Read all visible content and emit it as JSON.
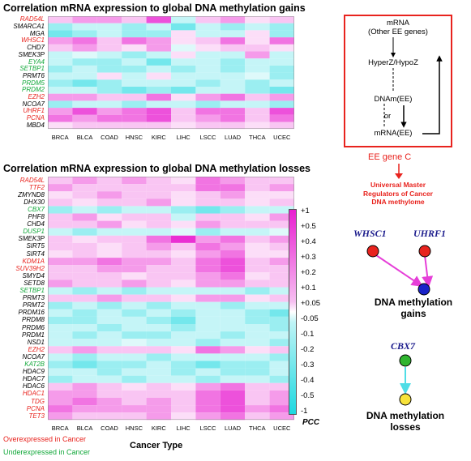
{
  "top_panel": {
    "title": "Correlation mRNA expression to global DNA methylation gains",
    "genes": [
      {
        "name": "RAD54L",
        "color": "red"
      },
      {
        "name": "SMARCA1",
        "color": "black"
      },
      {
        "name": "MGA",
        "color": "black"
      },
      {
        "name": "WHSC1",
        "color": "red"
      },
      {
        "name": "CHD7",
        "color": "black"
      },
      {
        "name": "SMEK3P",
        "color": "black"
      },
      {
        "name": "EYA4",
        "color": "green"
      },
      {
        "name": "SETBP1",
        "color": "green"
      },
      {
        "name": "PRMT6",
        "color": "black"
      },
      {
        "name": "PRDM5",
        "color": "green"
      },
      {
        "name": "PRDM2",
        "color": "green"
      },
      {
        "name": "EZH2",
        "color": "red"
      },
      {
        "name": "NCOA7",
        "color": "black"
      },
      {
        "name": "UHRF1",
        "color": "red"
      },
      {
        "name": "PCNA",
        "color": "red"
      },
      {
        "name": "MBD4",
        "color": "black"
      }
    ]
  },
  "bottom_panel": {
    "title": "Correlation mRNA expression to global DNA methylation losses",
    "genes": [
      {
        "name": "RAD54L",
        "color": "red"
      },
      {
        "name": "TTF2",
        "color": "red"
      },
      {
        "name": "ZMYND8",
        "color": "black"
      },
      {
        "name": "DHX30",
        "color": "black"
      },
      {
        "name": "CBX7",
        "color": "green"
      },
      {
        "name": "PHF8",
        "color": "black"
      },
      {
        "name": "CHD4",
        "color": "black"
      },
      {
        "name": "DUSP1",
        "color": "green"
      },
      {
        "name": "SMEK3P",
        "color": "black"
      },
      {
        "name": "SIRT5",
        "color": "black"
      },
      {
        "name": "SIRT4",
        "color": "black"
      },
      {
        "name": "KDM1A",
        "color": "red"
      },
      {
        "name": "SUV39H2",
        "color": "red"
      },
      {
        "name": "SMYD4",
        "color": "black"
      },
      {
        "name": "SETD8",
        "color": "black"
      },
      {
        "name": "SETBP1",
        "color": "green"
      },
      {
        "name": "PRMT3",
        "color": "black"
      },
      {
        "name": "PRMT2",
        "color": "black"
      },
      {
        "name": "PRDM16",
        "color": "black"
      },
      {
        "name": "PRDM8",
        "color": "black"
      },
      {
        "name": "PRDM6",
        "color": "black"
      },
      {
        "name": "PRDM1",
        "color": "black"
      },
      {
        "name": "NSD1",
        "color": "black"
      },
      {
        "name": "EZH2",
        "color": "red"
      },
      {
        "name": "NCOA7",
        "color": "black"
      },
      {
        "name": "KAT2B",
        "color": "green"
      },
      {
        "name": "HDAC9",
        "color": "black"
      },
      {
        "name": "HDAC7",
        "color": "black"
      },
      {
        "name": "HDAC6",
        "color": "black"
      },
      {
        "name": "HDAC1",
        "color": "red"
      },
      {
        "name": "TDG",
        "color": "red"
      },
      {
        "name": "PCNA",
        "color": "red"
      },
      {
        "name": "TET3",
        "color": "red"
      }
    ],
    "xlabel": "Cancer Type"
  },
  "cancer_types": [
    "BRCA",
    "BLCA",
    "COAD",
    "HNSC",
    "KIRC",
    "LIHC",
    "LSCC",
    "LUAD",
    "THCA",
    "UCEC"
  ],
  "legend": {
    "title": "PCC",
    "ticks": [
      "+1",
      "+0.5",
      "+0.4",
      "+0.3",
      "+0.2",
      "+0.1",
      "+0.05",
      "-0.05",
      "-0.1",
      "-0.2",
      "-0.3",
      "-0.4",
      "-0.5",
      "-1"
    ]
  },
  "notes": {
    "over": "Overexpressed in Cancer",
    "under": "Underexpressed in Cancer"
  },
  "flow": {
    "mrna": "mRNA",
    "other": "(Other EE genes)",
    "hyper": "HyperZ/HypoZ",
    "dnam": "DNAm(EE)",
    "or": "or",
    "mrna_ee": "mRNA(EE)",
    "gene_c": "EE gene C",
    "regulators": [
      "Universal Master",
      "Regulators of Cancer",
      "DNA methylome"
    ]
  },
  "network": {
    "whsc1": "WHSC1",
    "uhrf1": "UHRF1",
    "gains": [
      "DNA methylation",
      "gains"
    ],
    "cbx7": "CBX7",
    "losses": [
      "DNA methylation",
      "losses"
    ]
  },
  "colors": {
    "pos_max": "#e81ed0",
    "neg_max": "#1ed8e0",
    "red_text": "#e8231e",
    "green_text": "#12a83a",
    "navy": "#1b1b8c",
    "arrow_magenta": "#e63fd8",
    "arrow_cyan": "#4fdde6"
  },
  "chart_data": [
    {
      "type": "heatmap",
      "title": "Correlation mRNA expression to global DNA methylation gains",
      "x": [
        "BRCA",
        "BLCA",
        "COAD",
        "HNSC",
        "KIRC",
        "LIHC",
        "LSCC",
        "LUAD",
        "THCA",
        "UCEC"
      ],
      "y": [
        "RAD54L",
        "SMARCA1",
        "MGA",
        "WHSC1",
        "CHD7",
        "SMEK3P",
        "EYA4",
        "SETBP1",
        "PRMT6",
        "PRDM5",
        "PRDM2",
        "EZH2",
        "NCOA7",
        "UHRF1",
        "PCNA",
        "MBD4"
      ],
      "values": [
        [
          0.1,
          0.2,
          0.2,
          0.1,
          0.4,
          -0.1,
          0.1,
          0.2,
          0.05,
          0.1
        ],
        [
          -0.2,
          -0.1,
          -0.1,
          -0.2,
          -0.1,
          -0.3,
          -0.1,
          -0.2,
          -0.1,
          -0.2
        ],
        [
          -0.3,
          -0.2,
          -0.1,
          -0.2,
          -0.2,
          0.05,
          -0.1,
          -0.1,
          0.05,
          -0.2
        ],
        [
          0.2,
          0.3,
          0.1,
          0.3,
          0.2,
          0.05,
          0.1,
          0.3,
          0.05,
          0.3
        ],
        [
          0.1,
          0.2,
          0.1,
          0.05,
          0.2,
          -0.05,
          0.05,
          0.1,
          0.1,
          0.05
        ],
        [
          -0.1,
          -0.05,
          -0.1,
          -0.2,
          -0.1,
          0.05,
          -0.1,
          -0.1,
          0.2,
          -0.1
        ],
        [
          -0.1,
          -0.2,
          -0.2,
          -0.1,
          -0.3,
          -0.1,
          -0.1,
          -0.2,
          -0.1,
          -0.1
        ],
        [
          -0.2,
          -0.1,
          -0.2,
          -0.2,
          -0.1,
          -0.2,
          -0.1,
          -0.2,
          -0.1,
          -0.2
        ],
        [
          -0.1,
          -0.1,
          0.05,
          -0.1,
          0.05,
          -0.1,
          -0.1,
          -0.1,
          -0.05,
          -0.2
        ],
        [
          -0.2,
          -0.3,
          -0.2,
          -0.1,
          -0.1,
          -0.1,
          -0.2,
          -0.1,
          -0.2,
          -0.1
        ],
        [
          -0.1,
          -0.1,
          -0.2,
          -0.3,
          -0.2,
          -0.3,
          -0.1,
          -0.1,
          -0.2,
          -0.3
        ],
        [
          0.2,
          0.2,
          0.1,
          0.1,
          0.3,
          0.05,
          0.2,
          0.3,
          0.1,
          0.2
        ],
        [
          -0.2,
          -0.1,
          -0.1,
          -0.2,
          -0.1,
          -0.1,
          -0.2,
          -0.1,
          -0.1,
          -0.2
        ],
        [
          0.2,
          0.4,
          0.2,
          0.3,
          0.4,
          0.1,
          0.3,
          0.3,
          0.1,
          0.4
        ],
        [
          0.3,
          0.2,
          0.3,
          0.3,
          0.4,
          0.1,
          0.2,
          0.3,
          0.1,
          0.3
        ],
        [
          0.05,
          0.1,
          0.1,
          0.1,
          0.1,
          0.05,
          0.1,
          0.1,
          0.05,
          0.1
        ]
      ],
      "value_range": [
        -1,
        1
      ]
    },
    {
      "type": "heatmap",
      "title": "Correlation mRNA expression to global DNA methylation losses",
      "x": [
        "BRCA",
        "BLCA",
        "COAD",
        "HNSC",
        "KIRC",
        "LIHC",
        "LSCC",
        "LUAD",
        "THCA",
        "UCEC"
      ],
      "y": [
        "RAD54L",
        "TTF2",
        "ZMYND8",
        "DHX30",
        "CBX7",
        "PHF8",
        "CHD4",
        "DUSP1",
        "SMEK3P",
        "SIRT5",
        "SIRT4",
        "KDM1A",
        "SUV39H2",
        "SMYD4",
        "SETD8",
        "SETBP1",
        "PRMT3",
        "PRMT2",
        "PRDM16",
        "PRDM8",
        "PRDM6",
        "PRDM1",
        "NSD1",
        "EZH2",
        "NCOA7",
        "KAT2B",
        "HDAC9",
        "HDAC7",
        "HDAC6",
        "HDAC1",
        "TDG",
        "PCNA",
        "TET3"
      ],
      "values": [
        [
          0.1,
          0.2,
          0.1,
          0.2,
          0.1,
          0.05,
          0.3,
          0.2,
          0.1,
          0.1
        ],
        [
          0.2,
          0.1,
          0.1,
          0.1,
          0.1,
          0.1,
          0.3,
          0.3,
          0.1,
          0.2
        ],
        [
          0.05,
          0.1,
          0.2,
          0.1,
          0.1,
          0.05,
          0.1,
          0.2,
          0.05,
          0.05
        ],
        [
          0.1,
          0.05,
          0.1,
          0.1,
          0.2,
          0.05,
          0.1,
          0.1,
          0.05,
          0.1
        ],
        [
          -0.2,
          -0.1,
          -0.2,
          -0.1,
          -0.1,
          -0.2,
          -0.3,
          -0.2,
          -0.1,
          -0.1
        ],
        [
          0.1,
          0.2,
          0.05,
          0.1,
          0.1,
          -0.1,
          0.1,
          0.1,
          0.05,
          0.2
        ],
        [
          0.1,
          0.1,
          0.2,
          0.05,
          0.1,
          0.05,
          0.2,
          0.1,
          0.1,
          0.1
        ],
        [
          -0.1,
          -0.2,
          -0.1,
          -0.1,
          -0.1,
          -0.05,
          -0.2,
          -0.1,
          -0.1,
          -0.05
        ],
        [
          0.1,
          0.05,
          0.1,
          0.1,
          0.3,
          0.5,
          0.2,
          0.3,
          0.1,
          0.2
        ],
        [
          0.1,
          0.1,
          0.05,
          0.1,
          0.2,
          0.1,
          0.3,
          0.2,
          0.05,
          0.1
        ],
        [
          0.05,
          0.1,
          0.05,
          0.1,
          0.1,
          0.05,
          0.2,
          0.3,
          0.05,
          0.05
        ],
        [
          0.2,
          0.2,
          0.3,
          0.2,
          0.2,
          0.1,
          0.3,
          0.4,
          0.1,
          0.2
        ],
        [
          0.1,
          0.1,
          0.2,
          0.2,
          0.1,
          0.1,
          0.3,
          0.4,
          0.1,
          0.1
        ],
        [
          0.1,
          0.1,
          0.1,
          0.05,
          0.1,
          0.1,
          0.2,
          0.3,
          0.05,
          0.1
        ],
        [
          0.2,
          0.1,
          0.1,
          0.2,
          0.1,
          0.05,
          0.2,
          0.2,
          0.1,
          0.1
        ],
        [
          -0.1,
          -0.2,
          -0.1,
          -0.2,
          -0.1,
          -0.1,
          -0.1,
          -0.1,
          -0.2,
          -0.1
        ],
        [
          0.1,
          0.1,
          0.2,
          0.1,
          0.1,
          0.05,
          0.2,
          0.2,
          0.05,
          0.1
        ],
        [
          -0.2,
          -0.1,
          -0.2,
          -0.1,
          -0.2,
          -0.1,
          -0.1,
          -0.2,
          -0.1,
          -0.1
        ],
        [
          -0.1,
          -0.2,
          -0.1,
          -0.2,
          -0.1,
          -0.2,
          -0.1,
          -0.1,
          -0.2,
          -0.3
        ],
        [
          -0.2,
          -0.2,
          -0.1,
          -0.1,
          -0.2,
          -0.3,
          -0.1,
          -0.1,
          -0.2,
          -0.2
        ],
        [
          -0.1,
          -0.1,
          -0.2,
          -0.1,
          -0.1,
          -0.2,
          -0.1,
          -0.1,
          -0.1,
          -0.2
        ],
        [
          -0.1,
          -0.2,
          -0.1,
          -0.2,
          -0.2,
          -0.1,
          -0.1,
          -0.2,
          -0.1,
          -0.1
        ],
        [
          -0.1,
          -0.1,
          -0.1,
          -0.05,
          -0.1,
          -0.1,
          -0.2,
          -0.1,
          -0.1,
          -0.2
        ],
        [
          0.1,
          0.2,
          0.1,
          0.1,
          0.1,
          0.05,
          0.3,
          0.2,
          0.05,
          0.1
        ],
        [
          -0.1,
          -0.2,
          -0.1,
          -0.1,
          -0.2,
          -0.1,
          -0.1,
          -0.1,
          -0.1,
          -0.2
        ],
        [
          -0.2,
          -0.3,
          -0.2,
          -0.2,
          -0.1,
          -0.2,
          -0.3,
          -0.2,
          -0.2,
          -0.1
        ],
        [
          -0.1,
          -0.1,
          -0.2,
          -0.1,
          -0.1,
          -0.2,
          -0.1,
          -0.2,
          -0.2,
          -0.1
        ],
        [
          -0.2,
          -0.1,
          -0.1,
          -0.2,
          -0.1,
          -0.1,
          -0.2,
          -0.1,
          -0.1,
          -0.2
        ],
        [
          0.1,
          0.2,
          0.1,
          0.05,
          0.1,
          0.05,
          0.2,
          0.3,
          0.1,
          0.1
        ],
        [
          0.2,
          0.2,
          0.1,
          0.1,
          0.1,
          0.1,
          0.3,
          0.4,
          0.1,
          0.2
        ],
        [
          0.2,
          0.3,
          0.2,
          0.1,
          0.2,
          0.1,
          0.3,
          0.4,
          0.1,
          0.2
        ],
        [
          0.3,
          0.2,
          0.2,
          0.2,
          0.2,
          0.1,
          0.3,
          0.4,
          0.2,
          0.3
        ],
        [
          0.2,
          0.1,
          0.1,
          0.1,
          0.2,
          0.05,
          0.2,
          0.3,
          0.1,
          0.2
        ]
      ],
      "value_range": [
        -1,
        1
      ]
    }
  ]
}
